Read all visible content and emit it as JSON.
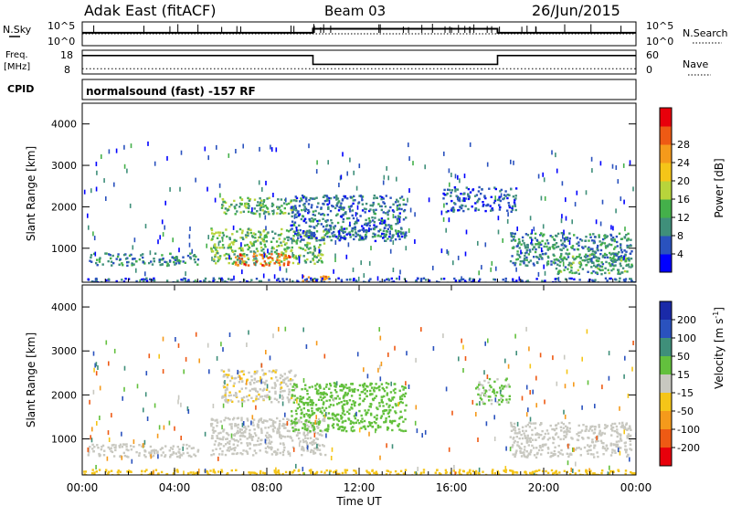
{
  "header": {
    "radar": "Adak East (fitACF)",
    "beam": "Beam 03",
    "date": "26/Jun/2015"
  },
  "panels": {
    "nsky": {
      "label": "N.Sky",
      "ticks": [
        "10^5",
        "10^0"
      ]
    },
    "nsearch": {
      "label": "N.Search",
      "ticks": [
        "10^5",
        "10^0"
      ]
    },
    "freq": {
      "label_line1": "Freq.",
      "label_line2": "[MHz]",
      "ticks": [
        "18",
        "8"
      ]
    },
    "nave": {
      "label": "Nave",
      "ticks": [
        "60",
        "0"
      ]
    },
    "cpid": {
      "label": "CPID",
      "text": "normalsound (fast) -157 RF"
    }
  },
  "chart_data": [
    {
      "type": "line",
      "name": "N.Sky / N.Search noise",
      "x_range_hours": [
        0,
        24
      ],
      "series": [
        {
          "name": "N.Sky",
          "x": [
            0,
            10,
            10,
            18,
            18,
            24
          ],
          "values": [
            0.55,
            0.55,
            0.75,
            0.75,
            0.55,
            0.55
          ]
        },
        {
          "name": "N.Search",
          "x": [
            0,
            24
          ],
          "values": [
            0.5,
            0.5
          ]
        }
      ]
    },
    {
      "type": "line",
      "name": "Frequency / Nave",
      "x_range_hours": [
        0,
        24
      ],
      "series": [
        {
          "name": "Freq. [MHz]",
          "x": [
            0,
            10,
            10,
            18,
            18,
            24
          ],
          "values": [
            16,
            16,
            12,
            12,
            16,
            16
          ]
        },
        {
          "name": "Nave",
          "x": [
            0,
            24
          ],
          "values": [
            12,
            12
          ]
        }
      ]
    },
    {
      "type": "heatmap",
      "title": "Power [dB]",
      "xlabel": "",
      "ylabel": "Slant Range [km]",
      "ylim": [
        180,
        4500
      ],
      "y_ticks": [
        1000,
        2000,
        3000,
        4000
      ],
      "colorbar": {
        "label": "Power [dB]",
        "ticks": [
          "4",
          "8",
          "12",
          "16",
          "20",
          "24",
          "28"
        ],
        "colors": [
          "#0000ff",
          "#2a52be",
          "#3f8f7a",
          "#44b04a",
          "#b8d43b",
          "#f5c518",
          "#f59a1b",
          "#ee5a14",
          "#e8000b"
        ]
      },
      "regions": [
        {
          "t": [
            0.2,
            5.0
          ],
          "r": [
            600,
            900
          ],
          "v": 10
        },
        {
          "t": [
            5.5,
            10.5
          ],
          "r": [
            650,
            1500
          ],
          "v": 15
        },
        {
          "t": [
            6.6,
            9.0
          ],
          "r": [
            600,
            900
          ],
          "v": 28
        },
        {
          "t": [
            6.0,
            9.2
          ],
          "r": [
            1850,
            2250
          ],
          "v": 13
        },
        {
          "t": [
            9.0,
            14.0
          ],
          "r": [
            1200,
            2300
          ],
          "v": 8
        },
        {
          "t": [
            10.5,
            14.0
          ],
          "r": [
            1300,
            1500
          ],
          "v": 10
        },
        {
          "t": [
            15.6,
            18.8
          ],
          "r": [
            1900,
            2500
          ],
          "v": 6
        },
        {
          "t": [
            18.5,
            23.8
          ],
          "r": [
            600,
            1400
          ],
          "v": 10
        },
        {
          "t": [
            20.5,
            23.8
          ],
          "r": [
            400,
            900
          ],
          "v": 12
        },
        {
          "t": [
            9.5,
            10.7
          ],
          "r": [
            200,
            350
          ],
          "v": 26
        },
        {
          "t": [
            0.0,
            24.0
          ],
          "r": [
            180,
            300
          ],
          "v": 6
        }
      ]
    },
    {
      "type": "heatmap",
      "title": "Velocity [m s^-1]",
      "xlabel": "Time UT",
      "ylabel": "Slant Range [km]",
      "ylim": [
        180,
        4500
      ],
      "y_ticks": [
        1000,
        2000,
        3000,
        4000
      ],
      "x_ticks": [
        "00:00",
        "04:00",
        "08:00",
        "12:00",
        "16:00",
        "20:00",
        "00:00"
      ],
      "colorbar": {
        "label_main": "Velocity [m s",
        "label_sup": "-1",
        "label_end": "]",
        "ticks": [
          "200",
          "100",
          "50",
          "15",
          "-15",
          "-50",
          "-100",
          "-200"
        ],
        "colors": [
          "#1a2aa8",
          "#2a52be",
          "#3f8f7a",
          "#63c03d",
          "#c8c8c0",
          "#f5c518",
          "#f59a1b",
          "#ee5a14",
          "#e8000b"
        ]
      },
      "regions": [
        {
          "t": [
            0.2,
            5.0
          ],
          "r": [
            600,
            900
          ],
          "v": 0
        },
        {
          "t": [
            5.5,
            10.5
          ],
          "r": [
            650,
            1500
          ],
          "v": 0
        },
        {
          "t": [
            6.0,
            9.2
          ],
          "r": [
            1850,
            2600
          ],
          "v": -10
        },
        {
          "t": [
            9.0,
            14.0
          ],
          "r": [
            1200,
            2300
          ],
          "v": 30
        },
        {
          "t": [
            17.0,
            18.5
          ],
          "r": [
            1800,
            2400
          ],
          "v": 20
        },
        {
          "t": [
            18.5,
            23.8
          ],
          "r": [
            600,
            1400
          ],
          "v": 0
        },
        {
          "t": [
            0.0,
            24.0
          ],
          "r": [
            180,
            320
          ],
          "v": -40
        }
      ]
    }
  ],
  "colors": {
    "frame": "#000000",
    "dotted": "#000000"
  }
}
